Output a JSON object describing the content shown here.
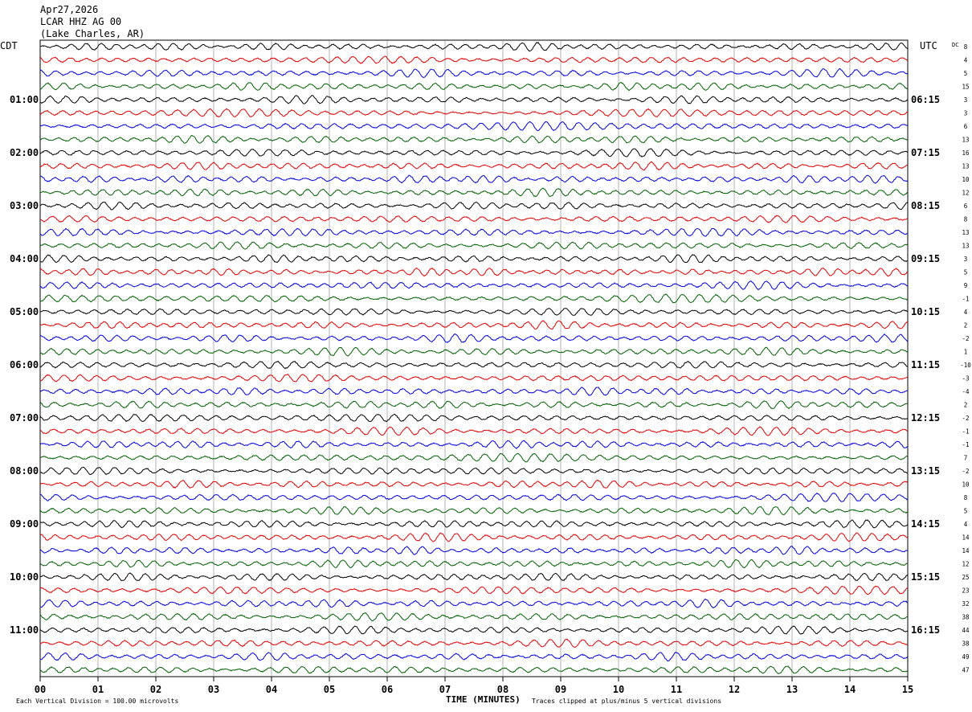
{
  "header": {
    "date": "Apr27,2026",
    "station": "LCAR HHZ AG 00",
    "location": "(Lake Charles, AR)"
  },
  "left_zone": "CDT",
  "right_zone": "UTC",
  "dc_label": "DC",
  "footer": {
    "scale_note": "Each Vertical Division =  100.00 microvolts",
    "x_title": "TIME (MINUTES)",
    "clip_note": "Traces clipped at plus/minus 5 vertical divisions"
  },
  "colors": {
    "cycle": [
      "#000000",
      "#e00000",
      "#0000e0",
      "#006000"
    ],
    "grid": "#808080"
  },
  "chart_data": {
    "type": "line",
    "title": "LCAR HHZ AG 00",
    "xlabel": "TIME (MINUTES)",
    "xlim": [
      0,
      15
    ],
    "x_ticks": [
      "00",
      "01",
      "02",
      "03",
      "04",
      "05",
      "06",
      "07",
      "08",
      "09",
      "10",
      "11",
      "12",
      "13",
      "14",
      "15"
    ],
    "grid": true,
    "hour_labels_left": [
      "01:00",
      "02:00",
      "03:00",
      "04:00",
      "05:00",
      "06:00",
      "07:00",
      "08:00",
      "09:00",
      "10:00",
      "11:00"
    ],
    "hour_labels_right": [
      "06:15",
      "07:15",
      "08:15",
      "09:15",
      "10:15",
      "11:15",
      "12:15",
      "13:15",
      "14:15",
      "15:15",
      "16:15"
    ],
    "trace_count": 48,
    "dc_offsets": [
      8,
      4,
      5,
      15,
      3,
      3,
      6,
      13,
      16,
      13,
      10,
      12,
      6,
      8,
      13,
      13,
      3,
      5,
      9,
      -1,
      4,
      2,
      -2,
      1,
      -10,
      -3,
      -4,
      2,
      -2,
      -1,
      -1,
      7,
      -2,
      10,
      8,
      5,
      4,
      14,
      14,
      12,
      25,
      23,
      32,
      38,
      44,
      38,
      49,
      47
    ]
  }
}
